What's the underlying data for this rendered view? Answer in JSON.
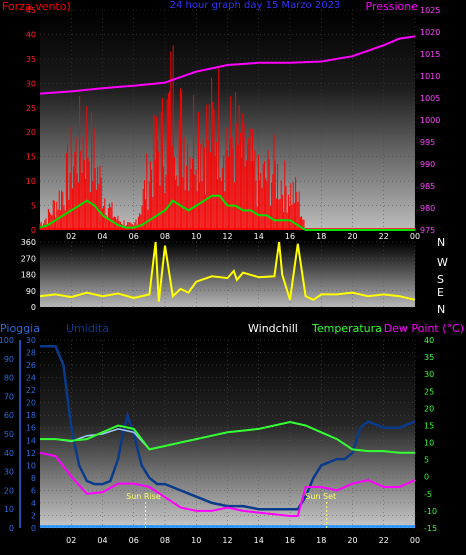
{
  "colors": {
    "background": "#000000",
    "wind": "#ff0000",
    "wind_avg": "#00e000",
    "pressure": "#ff00ff",
    "direction": "#ffff00",
    "humidity": "#0a3a8a",
    "temperature": "#33ff33",
    "windchill": "#a0c8ff",
    "dewpoint": "#ff00ff",
    "rain_axis": "#2a6ad8",
    "title": "#3333ff"
  },
  "top_panel": {
    "left_label": "Forza vento)",
    "title": "24 hour graph day 15 Marzo 2023",
    "right_label": "Pressione",
    "x_ticks": [
      "02",
      "04",
      "06",
      "08",
      "10",
      "12",
      "14",
      "16",
      "18",
      "20",
      "22",
      "00"
    ],
    "y_left_ticks": [
      "0",
      "5",
      "10",
      "15",
      "20",
      "25",
      "30",
      "35",
      "40",
      "45"
    ],
    "y_right_ticks": [
      "975",
      "980",
      "985",
      "990",
      "995",
      "1000",
      "1005",
      "1010",
      "1015",
      "1020",
      "1025"
    ]
  },
  "mid_panel": {
    "y_ticks": [
      "0",
      "90",
      "180",
      "270",
      "360"
    ],
    "compass": [
      "N",
      "W",
      "S",
      "E",
      "N"
    ]
  },
  "bottom_panel": {
    "labels": {
      "rain": "Pioggia",
      "humidity": "Umidita",
      "windchill": "Windchill",
      "temperature": "Temperatura",
      "dewpoint": "Dew Point (°C)"
    },
    "sun_rise": "Sun Rise",
    "sun_set": "Sun Set",
    "y_rain_ticks": [
      "0",
      "10",
      "20",
      "30",
      "40",
      "50",
      "60",
      "70",
      "80",
      "90",
      "100"
    ],
    "y_hum_ticks": [
      "0",
      "2",
      "4",
      "6",
      "8",
      "10",
      "12",
      "14",
      "16",
      "18",
      "20",
      "22",
      "24",
      "26",
      "28",
      "30"
    ],
    "y_temp_ticks": [
      "-15",
      "-10",
      "-5",
      "0",
      "5",
      "10",
      "15",
      "20",
      "25",
      "30",
      "35",
      "40"
    ]
  },
  "chart_data": [
    {
      "type": "area",
      "title": "24 hour graph day 15 Marzo 2023",
      "x_unit": "hour",
      "ylim": [
        0,
        45
      ],
      "y2lim": [
        975,
        1025
      ],
      "series": [
        {
          "name": "Forza vento)",
          "axis": "left",
          "x": [
            0,
            0.5,
            1,
            1.5,
            2,
            2.5,
            3,
            3.5,
            4,
            4.5,
            5,
            5.5,
            6,
            6.5,
            7,
            7.5,
            8,
            8.5,
            9,
            9.5,
            10,
            10.5,
            11,
            11.5,
            12,
            12.5,
            13,
            13.5,
            14,
            14.5,
            15,
            15.5,
            16,
            16.5,
            17,
            17.5,
            18,
            19,
            20,
            21,
            22,
            23,
            24
          ],
          "values": [
            2,
            4,
            8,
            12,
            20,
            25,
            28,
            20,
            12,
            6,
            3,
            2,
            1,
            8,
            18,
            24,
            28,
            40,
            30,
            26,
            32,
            28,
            30,
            34,
            26,
            28,
            22,
            20,
            14,
            16,
            18,
            14,
            12,
            10,
            0,
            0,
            0,
            0,
            0,
            0,
            0,
            0,
            0
          ]
        },
        {
          "name": "",
          "axis": "left",
          "x": [
            0,
            0.5,
            1,
            1.5,
            2,
            2.5,
            3,
            3.5,
            4,
            4.5,
            5,
            5.5,
            6,
            6.5,
            7,
            7.5,
            8,
            8.5,
            9,
            9.5,
            10,
            10.5,
            11,
            11.5,
            12,
            12.5,
            13,
            13.5,
            14,
            14.5,
            15,
            15.5,
            16,
            16.5,
            17,
            17.5,
            18,
            19,
            20,
            21,
            22,
            23,
            24
          ],
          "values": [
            0.5,
            1,
            2,
            3,
            4,
            5,
            6,
            5,
            3,
            2,
            1,
            0.5,
            0.5,
            1,
            2,
            3,
            4,
            6,
            5,
            4,
            5,
            6,
            7,
            7,
            5,
            5,
            4,
            4,
            3,
            3,
            2,
            2,
            2,
            1,
            0,
            0,
            0,
            0,
            0,
            0,
            0,
            0,
            0
          ]
        },
        {
          "name": "Pressione",
          "axis": "right",
          "x": [
            0,
            2,
            4,
            6,
            8,
            10,
            12,
            14,
            16,
            18,
            20,
            22,
            23,
            24
          ],
          "values": [
            1006,
            1006.5,
            1007.2,
            1007.8,
            1008.5,
            1011,
            1012.5,
            1013,
            1013,
            1013.3,
            1014.5,
            1017,
            1018.5,
            1019
          ]
        }
      ]
    },
    {
      "type": "line",
      "x_unit": "hour",
      "ylim": [
        0,
        360
      ],
      "series": [
        {
          "name": "",
          "x": [
            0,
            1,
            2,
            3,
            4,
            5,
            6,
            7,
            7.4,
            7.6,
            8,
            8.5,
            9,
            9.5,
            10,
            11,
            12,
            12.4,
            12.6,
            13,
            14,
            15,
            15.3,
            15.5,
            16,
            16.5,
            17,
            17.5,
            18,
            19,
            20,
            21,
            22,
            23,
            24
          ],
          "values": [
            60,
            70,
            55,
            80,
            60,
            75,
            50,
            70,
            360,
            30,
            340,
            60,
            100,
            80,
            140,
            170,
            160,
            200,
            150,
            190,
            165,
            170,
            360,
            180,
            40,
            350,
            60,
            40,
            70,
            70,
            80,
            60,
            70,
            60,
            40
          ]
        }
      ]
    },
    {
      "type": "line",
      "x_unit": "hour",
      "series": [
        {
          "name": "Umidita",
          "axis": "humidity",
          "x": [
            0,
            1,
            1.5,
            2,
            2.5,
            3,
            3.5,
            4,
            4.5,
            5,
            5.3,
            5.6,
            6,
            6.5,
            7,
            7.5,
            8,
            9,
            10,
            11,
            12,
            13,
            14,
            15,
            16,
            16.5,
            17,
            17.5,
            18,
            19,
            19.5,
            20,
            20.5,
            21,
            22,
            23,
            24
          ],
          "values": [
            29,
            29,
            26,
            16,
            10,
            7.5,
            7,
            7,
            7.5,
            11,
            15,
            18,
            15,
            10,
            8,
            7,
            7,
            6,
            5,
            4,
            3.5,
            3.5,
            3,
            3,
            3,
            3,
            5,
            8,
            10,
            11,
            11,
            12,
            16,
            17,
            16,
            16,
            17
          ]
        },
        {
          "name": "Temperatura",
          "axis": "temp",
          "x": [
            0,
            1,
            2,
            3,
            4,
            5,
            6,
            7,
            8,
            9,
            10,
            11,
            12,
            13,
            14,
            15,
            16,
            17,
            18,
            19,
            20,
            21,
            22,
            23,
            24
          ],
          "values": [
            11,
            11,
            10.5,
            11,
            13,
            15,
            14,
            8,
            9,
            10,
            11,
            12,
            13,
            13.5,
            14,
            15,
            16,
            15,
            13,
            11,
            8,
            7.5,
            7.5,
            7,
            7
          ]
        },
        {
          "name": "Windchill",
          "axis": "temp",
          "x": [
            0,
            1,
            2,
            3,
            4,
            5,
            6,
            7,
            8,
            9,
            10,
            11,
            12,
            13,
            14,
            15,
            16,
            17,
            18,
            19,
            20,
            21,
            22,
            23,
            24
          ],
          "values": [
            11,
            11,
            10.3,
            12,
            12.5,
            14,
            13,
            8,
            9,
            10,
            11,
            12,
            13,
            13.5,
            14,
            15,
            16,
            15,
            13,
            11,
            8,
            7.5,
            7.5,
            7,
            7
          ]
        },
        {
          "name": "Dew Point (°C)",
          "axis": "temp",
          "x": [
            0,
            1,
            2,
            3,
            4,
            5,
            6,
            7,
            8,
            9,
            10,
            11,
            12,
            13,
            14,
            15,
            16,
            16.5,
            17,
            18,
            19,
            20,
            21,
            22,
            23,
            24
          ],
          "values": [
            7,
            6,
            0,
            -5,
            -4.5,
            -2,
            -2,
            -3,
            -6,
            -9,
            -10,
            -10,
            -9,
            -10,
            -10.5,
            -11,
            -11.5,
            -11.5,
            -3,
            -3,
            -4,
            -2,
            -1,
            -3,
            -3,
            -1
          ]
        },
        {
          "name": "Pioggia",
          "axis": "rain",
          "x": [
            0,
            24
          ],
          "values": [
            0,
            0
          ]
        }
      ],
      "annotations": [
        "Sun Rise",
        "Sun Set"
      ]
    }
  ]
}
